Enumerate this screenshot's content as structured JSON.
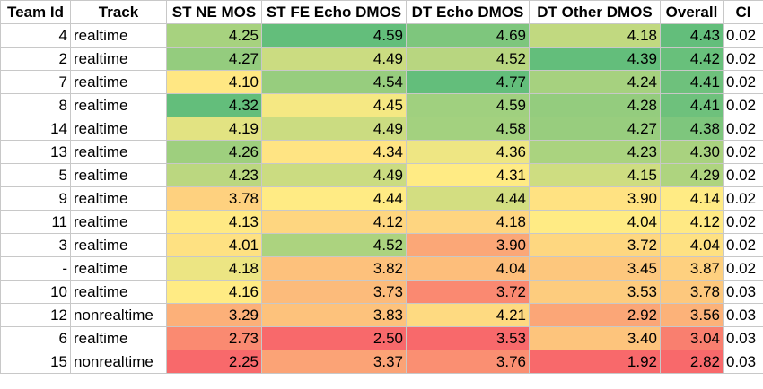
{
  "chart_data": {
    "type": "table",
    "columns": [
      "Team Id",
      "Track",
      "ST NE MOS",
      "ST FE Echo DMOS",
      "DT Echo DMOS",
      "DT Other DMOS",
      "Overall",
      "CI"
    ],
    "rows": [
      {
        "team_id": "4",
        "track": "realtime",
        "st_ne_mos": "4.25",
        "st_fe_echo_dmos": "4.59",
        "dt_echo_dmos": "4.69",
        "dt_other_dmos": "4.18",
        "overall": "4.43",
        "ci": "0.02"
      },
      {
        "team_id": "2",
        "track": "realtime",
        "st_ne_mos": "4.27",
        "st_fe_echo_dmos": "4.49",
        "dt_echo_dmos": "4.52",
        "dt_other_dmos": "4.39",
        "overall": "4.42",
        "ci": "0.02"
      },
      {
        "team_id": "7",
        "track": "realtime",
        "st_ne_mos": "4.10",
        "st_fe_echo_dmos": "4.54",
        "dt_echo_dmos": "4.77",
        "dt_other_dmos": "4.24",
        "overall": "4.41",
        "ci": "0.02"
      },
      {
        "team_id": "8",
        "track": "realtime",
        "st_ne_mos": "4.32",
        "st_fe_echo_dmos": "4.45",
        "dt_echo_dmos": "4.59",
        "dt_other_dmos": "4.28",
        "overall": "4.41",
        "ci": "0.02"
      },
      {
        "team_id": "14",
        "track": "realtime",
        "st_ne_mos": "4.19",
        "st_fe_echo_dmos": "4.49",
        "dt_echo_dmos": "4.58",
        "dt_other_dmos": "4.27",
        "overall": "4.38",
        "ci": "0.02"
      },
      {
        "team_id": "13",
        "track": "realtime",
        "st_ne_mos": "4.26",
        "st_fe_echo_dmos": "4.34",
        "dt_echo_dmos": "4.36",
        "dt_other_dmos": "4.23",
        "overall": "4.30",
        "ci": "0.02"
      },
      {
        "team_id": "5",
        "track": "realtime",
        "st_ne_mos": "4.23",
        "st_fe_echo_dmos": "4.49",
        "dt_echo_dmos": "4.31",
        "dt_other_dmos": "4.15",
        "overall": "4.29",
        "ci": "0.02"
      },
      {
        "team_id": "9",
        "track": "realtime",
        "st_ne_mos": "3.78",
        "st_fe_echo_dmos": "4.44",
        "dt_echo_dmos": "4.44",
        "dt_other_dmos": "3.90",
        "overall": "4.14",
        "ci": "0.02"
      },
      {
        "team_id": "11",
        "track": "realtime",
        "st_ne_mos": "4.13",
        "st_fe_echo_dmos": "4.12",
        "dt_echo_dmos": "4.18",
        "dt_other_dmos": "4.04",
        "overall": "4.12",
        "ci": "0.02"
      },
      {
        "team_id": "3",
        "track": "realtime",
        "st_ne_mos": "4.01",
        "st_fe_echo_dmos": "4.52",
        "dt_echo_dmos": "3.90",
        "dt_other_dmos": "3.72",
        "overall": "4.04",
        "ci": "0.02"
      },
      {
        "team_id": "-",
        "track": "realtime",
        "st_ne_mos": "4.18",
        "st_fe_echo_dmos": "3.82",
        "dt_echo_dmos": "4.04",
        "dt_other_dmos": "3.45",
        "overall": "3.87",
        "ci": "0.02"
      },
      {
        "team_id": "10",
        "track": "realtime",
        "st_ne_mos": "4.16",
        "st_fe_echo_dmos": "3.73",
        "dt_echo_dmos": "3.72",
        "dt_other_dmos": "3.53",
        "overall": "3.78",
        "ci": "0.03"
      },
      {
        "team_id": "12",
        "track": "nonrealtime",
        "st_ne_mos": "3.29",
        "st_fe_echo_dmos": "3.83",
        "dt_echo_dmos": "4.21",
        "dt_other_dmos": "2.92",
        "overall": "3.56",
        "ci": "0.03"
      },
      {
        "team_id": "6",
        "track": "realtime",
        "st_ne_mos": "2.73",
        "st_fe_echo_dmos": "2.50",
        "dt_echo_dmos": "3.53",
        "dt_other_dmos": "3.40",
        "overall": "3.04",
        "ci": "0.03"
      },
      {
        "team_id": "15",
        "track": "nonrealtime",
        "st_ne_mos": "2.25",
        "st_fe_echo_dmos": "3.37",
        "dt_echo_dmos": "3.76",
        "dt_other_dmos": "1.92",
        "overall": "2.82",
        "ci": "0.03"
      }
    ],
    "color_scale": {
      "low": "#f8696b",
      "mid": "#ffeb84",
      "high": "#63be7b"
    }
  }
}
